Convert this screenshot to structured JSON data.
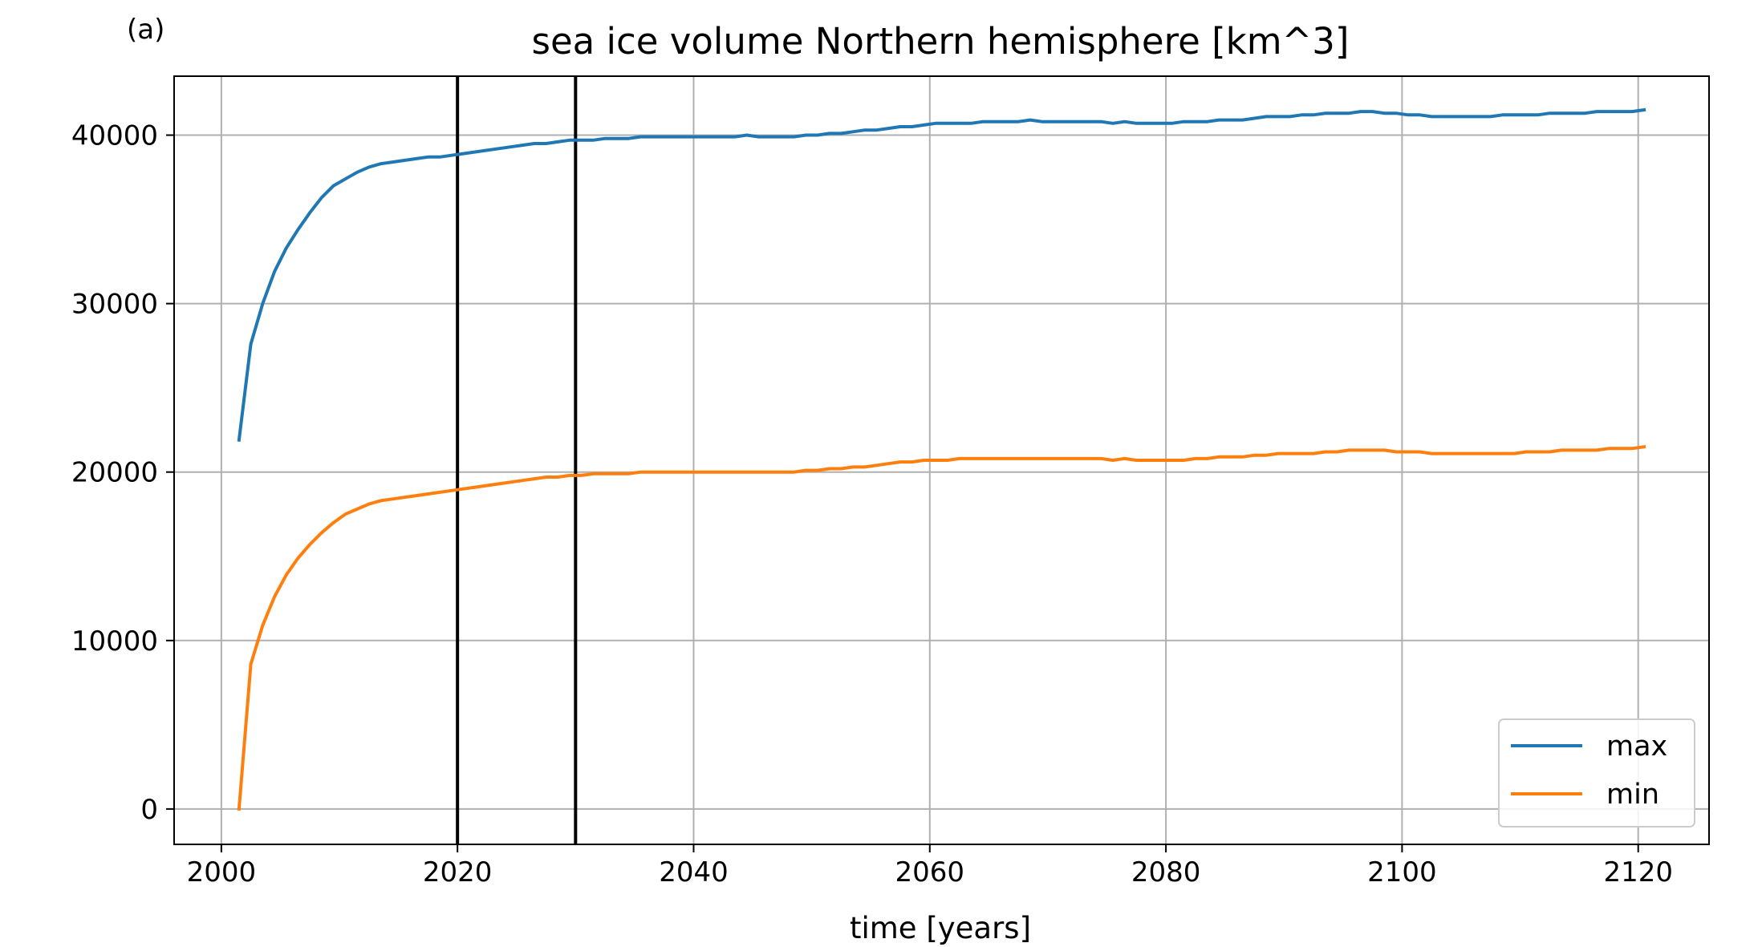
{
  "panel_label": "(a)",
  "chart_data": {
    "type": "line",
    "title": "sea ice volume Northern hemisphere [km^3]",
    "xlabel": "time [years]",
    "ylabel": "",
    "xlim": [
      1996,
      2126
    ],
    "ylim": [
      -2100,
      43500
    ],
    "xticks": [
      2000,
      2020,
      2040,
      2060,
      2080,
      2100,
      2120
    ],
    "yticks": [
      0,
      10000,
      20000,
      30000,
      40000
    ],
    "grid": true,
    "legend_position": "lower-right",
    "vlines": [
      2020,
      2030
    ],
    "vline_color": "#000000",
    "x": [
      2001.5,
      2002.5,
      2003.5,
      2004.5,
      2005.5,
      2006.5,
      2007.5,
      2008.5,
      2009.5,
      2010.5,
      2011.5,
      2012.5,
      2013.5,
      2014.5,
      2015.5,
      2016.5,
      2017.5,
      2018.5,
      2019.5,
      2020.5,
      2021.5,
      2022.5,
      2023.5,
      2024.5,
      2025.5,
      2026.5,
      2027.5,
      2028.5,
      2029.5,
      2030.5,
      2031.5,
      2032.5,
      2033.5,
      2034.5,
      2035.5,
      2036.5,
      2037.5,
      2038.5,
      2039.5,
      2040.5,
      2041.5,
      2042.5,
      2043.5,
      2044.5,
      2045.5,
      2046.5,
      2047.5,
      2048.5,
      2049.5,
      2050.5,
      2051.5,
      2052.5,
      2053.5,
      2054.5,
      2055.5,
      2056.5,
      2057.5,
      2058.5,
      2059.5,
      2060.5,
      2061.5,
      2062.5,
      2063.5,
      2064.5,
      2065.5,
      2066.5,
      2067.5,
      2068.5,
      2069.5,
      2070.5,
      2071.5,
      2072.5,
      2073.5,
      2074.5,
      2075.5,
      2076.5,
      2077.5,
      2078.5,
      2079.5,
      2080.5,
      2081.5,
      2082.5,
      2083.5,
      2084.5,
      2085.5,
      2086.5,
      2087.5,
      2088.5,
      2089.5,
      2090.5,
      2091.5,
      2092.5,
      2093.5,
      2094.5,
      2095.5,
      2096.5,
      2097.5,
      2098.5,
      2099.5,
      2100.5,
      2101.5,
      2102.5,
      2103.5,
      2104.5,
      2105.5,
      2106.5,
      2107.5,
      2108.5,
      2109.5,
      2110.5,
      2111.5,
      2112.5,
      2113.5,
      2114.5,
      2115.5,
      2116.5,
      2117.5,
      2118.5,
      2119.5,
      2120.5
    ],
    "series": [
      {
        "name": "max",
        "color": "#1f77b4",
        "values": [
          21900,
          27600,
          30000,
          31900,
          33300,
          34400,
          35400,
          36300,
          37000,
          37400,
          37800,
          38100,
          38300,
          38400,
          38500,
          38600,
          38700,
          38700,
          38800,
          38900,
          39000,
          39100,
          39200,
          39300,
          39400,
          39500,
          39500,
          39600,
          39700,
          39700,
          39700,
          39800,
          39800,
          39800,
          39900,
          39900,
          39900,
          39900,
          39900,
          39900,
          39900,
          39900,
          39900,
          40000,
          39900,
          39900,
          39900,
          39900,
          40000,
          40000,
          40100,
          40100,
          40200,
          40300,
          40300,
          40400,
          40500,
          40500,
          40600,
          40700,
          40700,
          40700,
          40700,
          40800,
          40800,
          40800,
          40800,
          40900,
          40800,
          40800,
          40800,
          40800,
          40800,
          40800,
          40700,
          40800,
          40700,
          40700,
          40700,
          40700,
          40800,
          40800,
          40800,
          40900,
          40900,
          40900,
          41000,
          41100,
          41100,
          41100,
          41200,
          41200,
          41300,
          41300,
          41300,
          41400,
          41400,
          41300,
          41300,
          41200,
          41200,
          41100,
          41100,
          41100,
          41100,
          41100,
          41100,
          41200,
          41200,
          41200,
          41200,
          41300,
          41300,
          41300,
          41300,
          41400,
          41400,
          41400,
          41400,
          41500
        ]
      },
      {
        "name": "min",
        "color": "#ff7f0e",
        "values": [
          0,
          8600,
          10900,
          12600,
          13900,
          14900,
          15700,
          16400,
          17000,
          17500,
          17800,
          18100,
          18300,
          18400,
          18500,
          18600,
          18700,
          18800,
          18900,
          19000,
          19100,
          19200,
          19300,
          19400,
          19500,
          19600,
          19700,
          19700,
          19800,
          19800,
          19900,
          19900,
          19900,
          19900,
          20000,
          20000,
          20000,
          20000,
          20000,
          20000,
          20000,
          20000,
          20000,
          20000,
          20000,
          20000,
          20000,
          20000,
          20100,
          20100,
          20200,
          20200,
          20300,
          20300,
          20400,
          20500,
          20600,
          20600,
          20700,
          20700,
          20700,
          20800,
          20800,
          20800,
          20800,
          20800,
          20800,
          20800,
          20800,
          20800,
          20800,
          20800,
          20800,
          20800,
          20700,
          20800,
          20700,
          20700,
          20700,
          20700,
          20700,
          20800,
          20800,
          20900,
          20900,
          20900,
          21000,
          21000,
          21100,
          21100,
          21100,
          21100,
          21200,
          21200,
          21300,
          21300,
          21300,
          21300,
          21200,
          21200,
          21200,
          21100,
          21100,
          21100,
          21100,
          21100,
          21100,
          21100,
          21100,
          21200,
          21200,
          21200,
          21300,
          21300,
          21300,
          21300,
          21400,
          21400,
          21400,
          21500
        ]
      }
    ]
  }
}
